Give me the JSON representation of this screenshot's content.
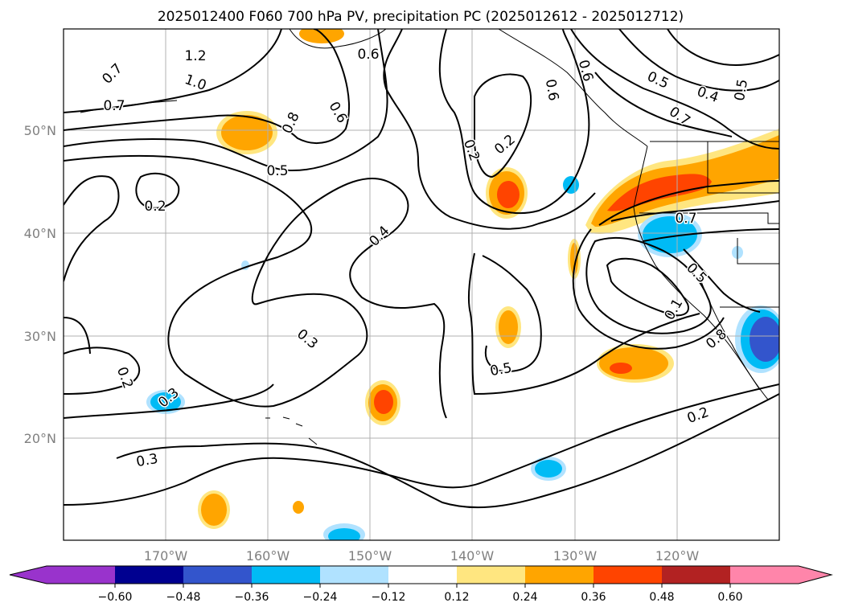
{
  "title": "2025012400 F060 700 hPa PV, precipitation PC (2025012612 - 2025012712)",
  "map": {
    "lat_labels": [
      "50°N",
      "40°N",
      "30°N",
      "20°N"
    ],
    "lon_labels": [
      "170°W",
      "160°W",
      "150°W",
      "140°W",
      "130°W",
      "120°W"
    ],
    "gridlines": true,
    "contour_labels": [
      "1.2",
      "0.7",
      "1.0",
      "0.7",
      "0.6",
      "0.6",
      "0.8",
      "0.5",
      "0.2",
      "0.4",
      "0.3",
      "0.2",
      "0.3",
      "0.6",
      "0.6",
      "0.5",
      "0.4",
      "0.5",
      "0.7",
      "0.7",
      "0.5",
      "0.1",
      "0.8",
      "0.5",
      "0.2",
      "0.2",
      "0.2",
      "0.3"
    ]
  },
  "colorbar": {
    "ticks": [
      "−0.60",
      "−0.48",
      "−0.36",
      "−0.24",
      "−0.12",
      "0.12",
      "0.24",
      "0.36",
      "0.48",
      "0.60"
    ],
    "colors": [
      "#9933cc",
      "#000090",
      "#3355cc",
      "#00bbf5",
      "#b0e2ff",
      "#ffffff",
      "#ffe680",
      "#ffa500",
      "#ff4400",
      "#b22222",
      "#ff85aa"
    ],
    "extend": "both"
  }
}
